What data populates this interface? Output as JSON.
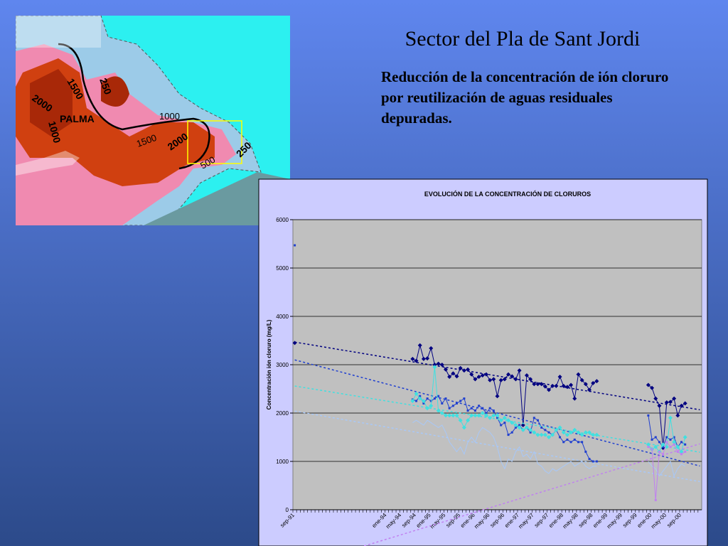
{
  "slide": {
    "title": "Sector del Pla de Sant Jordi",
    "subtitle": "Reducción de la concentración de ión cloruro por reutilización de aguas residuales depuradas."
  },
  "map": {
    "labels": [
      "250",
      "1500",
      "2000",
      "PALMA",
      "1000",
      "1000",
      "1500",
      "2000",
      "500",
      "250"
    ]
  },
  "chart_data": {
    "type": "line",
    "title": "EVOLUCIÓN DE LA CONCENTRACIÓN DE CLORUROS",
    "y_label": "Concentración ión cloruro (mg/L)",
    "ylim": [
      0,
      6000
    ],
    "yticks": [
      0,
      1000,
      2000,
      3000,
      4000,
      5000,
      6000
    ],
    "grid": true,
    "trendlines": true,
    "categories": [
      "sep-91",
      null,
      null,
      null,
      null,
      null,
      null,
      null,
      null,
      null,
      null,
      null,
      null,
      null,
      null,
      null,
      null,
      null,
      null,
      null,
      null,
      null,
      null,
      null,
      null,
      "ene-94",
      null,
      null,
      null,
      "may-94",
      null,
      null,
      null,
      "sep-94",
      null,
      null,
      null,
      "ene-95",
      null,
      null,
      null,
      "may-95",
      null,
      null,
      null,
      "sep-95",
      null,
      null,
      null,
      "ene-96",
      null,
      null,
      null,
      "may-96",
      null,
      null,
      null,
      "sep-96",
      null,
      null,
      null,
      "ene-97",
      null,
      null,
      null,
      "may-97",
      null,
      null,
      null,
      "sep-97",
      null,
      null,
      null,
      "ene-98",
      null,
      null,
      null,
      "may-98",
      null,
      null,
      null,
      "sep-98",
      null,
      null,
      null,
      "ene-99",
      null,
      null,
      null,
      "may-99",
      null,
      null,
      null,
      "sep-99",
      null,
      null,
      null,
      "ene-00",
      null,
      null,
      null,
      "may-00",
      null,
      null,
      null,
      "sep-00",
      null,
      null,
      null,
      null,
      null
    ],
    "series": [
      {
        "color": "#000080",
        "marker": "diamond",
        "values": [
          3450,
          null,
          null,
          null,
          null,
          null,
          null,
          null,
          null,
          null,
          null,
          null,
          null,
          null,
          null,
          null,
          null,
          null,
          null,
          null,
          null,
          null,
          null,
          null,
          null,
          null,
          null,
          null,
          null,
          null,
          null,
          null,
          3120,
          3080,
          3400,
          3120,
          3130,
          3340,
          3000,
          3020,
          3000,
          2900,
          2750,
          2820,
          2760,
          2930,
          2880,
          2900,
          2800,
          2700,
          2750,
          2780,
          2800,
          2680,
          2700,
          2350,
          2680,
          2700,
          2800,
          2760,
          2700,
          2880,
          1750,
          2780,
          2700,
          2600,
          2600,
          2600,
          2550,
          2480,
          2560,
          2560,
          2750,
          2560,
          2540,
          2580,
          2300,
          2800,
          2680,
          2600,
          2480,
          2620,
          2660,
          null,
          null,
          null,
          null,
          null,
          null,
          null,
          null,
          null,
          null,
          null,
          null,
          null,
          2580,
          2520,
          2300,
          2150,
          1280,
          2220,
          2230,
          2300,
          1950,
          2150,
          2200,
          null,
          null,
          null,
          null
        ]
      },
      {
        "color": "#1f3fd0",
        "marker": "square",
        "values": [
          5470,
          null,
          null,
          null,
          null,
          null,
          null,
          null,
          null,
          null,
          null,
          null,
          null,
          null,
          null,
          null,
          null,
          null,
          null,
          null,
          null,
          null,
          null,
          null,
          null,
          null,
          null,
          null,
          null,
          null,
          null,
          null,
          2280,
          2250,
          2350,
          2200,
          2300,
          2250,
          2300,
          2350,
          2200,
          2300,
          2100,
          2150,
          2200,
          2250,
          2300,
          2050,
          2100,
          2050,
          2150,
          2100,
          2000,
          2100,
          2050,
          1900,
          1750,
          1800,
          1550,
          1600,
          1700,
          1750,
          1650,
          1700,
          1600,
          1900,
          1850,
          1700,
          1650,
          1600,
          1550,
          1650,
          1500,
          1400,
          1450,
          1400,
          1450,
          1400,
          1400,
          1200,
          1050,
          1000,
          1000,
          null,
          null,
          null,
          null,
          null,
          null,
          null,
          null,
          null,
          null,
          null,
          null,
          null,
          1950,
          1450,
          1500,
          1400,
          1300,
          1500,
          1450,
          1500,
          1300,
          1400,
          1350,
          null,
          null,
          null,
          null
        ]
      },
      {
        "color": "#40e0e0",
        "marker": "diamond",
        "values": [
          null,
          null,
          null,
          null,
          null,
          null,
          null,
          null,
          null,
          null,
          null,
          null,
          null,
          null,
          null,
          null,
          null,
          null,
          null,
          null,
          null,
          null,
          null,
          null,
          null,
          null,
          null,
          null,
          null,
          null,
          null,
          null,
          2250,
          2400,
          2300,
          2250,
          2100,
          2150,
          2950,
          2050,
          2000,
          1950,
          1950,
          1950,
          1950,
          1850,
          1700,
          1850,
          1950,
          1950,
          1950,
          2000,
          1950,
          1900,
          1950,
          1950,
          1850,
          1900,
          1850,
          1800,
          1750,
          1700,
          1650,
          1700,
          1650,
          1600,
          1550,
          1550,
          1550,
          1500,
          1550,
          1650,
          1700,
          1600,
          1550,
          1600,
          1650,
          1600,
          1550,
          1600,
          1600,
          1550,
          1550,
          null,
          null,
          null,
          null,
          null,
          null,
          null,
          null,
          null,
          null,
          null,
          null,
          null,
          1350,
          1250,
          1300,
          1200,
          1350,
          1300,
          1900,
          1400,
          1300,
          1200,
          1500,
          null,
          null,
          null,
          null
        ]
      },
      {
        "color": "#a8c8f8",
        "marker": "none",
        "values": [
          null,
          null,
          null,
          null,
          null,
          null,
          null,
          null,
          null,
          null,
          null,
          null,
          null,
          null,
          null,
          null,
          null,
          null,
          null,
          null,
          null,
          null,
          null,
          null,
          null,
          null,
          null,
          null,
          null,
          null,
          null,
          null,
          1800,
          1850,
          1800,
          1750,
          1850,
          1800,
          1750,
          1700,
          1750,
          1600,
          1400,
          1300,
          1200,
          1300,
          1150,
          1400,
          1500,
          1400,
          1600,
          1700,
          1650,
          1600,
          1500,
          1300,
          1000,
          850,
          1050,
          1000,
          1200,
          1300,
          1100,
          1150,
          1050,
          1200,
          950,
          900,
          800,
          750,
          850,
          800,
          850,
          900,
          950,
          1000,
          900,
          950,
          1000,
          900,
          850,
          900,
          900,
          null,
          null,
          null,
          null,
          null,
          null,
          null,
          null,
          null,
          null,
          null,
          null,
          null,
          1000,
          900,
          850,
          700,
          800,
          900,
          1000,
          700,
          850,
          950,
          900,
          null,
          null,
          null,
          null
        ]
      },
      {
        "color": "#c080f0",
        "marker": "square",
        "values": [
          null,
          null,
          null,
          null,
          null,
          null,
          null,
          null,
          null,
          null,
          null,
          null,
          null,
          null,
          null,
          null,
          null,
          null,
          null,
          null,
          null,
          null,
          null,
          null,
          null,
          null,
          null,
          null,
          null,
          null,
          null,
          null,
          null,
          null,
          null,
          null,
          null,
          null,
          null,
          null,
          null,
          null,
          null,
          null,
          null,
          null,
          null,
          null,
          null,
          null,
          null,
          null,
          null,
          null,
          null,
          null,
          null,
          null,
          null,
          null,
          null,
          null,
          null,
          null,
          null,
          null,
          null,
          null,
          null,
          null,
          null,
          null,
          null,
          null,
          null,
          null,
          null,
          null,
          null,
          null,
          null,
          null,
          null,
          null,
          null,
          null,
          null,
          null,
          null,
          null,
          null,
          null,
          null,
          null,
          null,
          null,
          1300,
          1250,
          200,
          1200,
          1150,
          1400,
          1300,
          1350,
          1200,
          1150,
          1200,
          null,
          null,
          null,
          null
        ]
      }
    ]
  }
}
